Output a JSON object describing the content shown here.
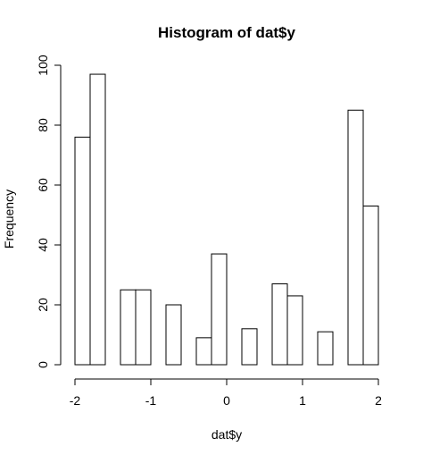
{
  "chart_data": {
    "type": "bar",
    "title": "Histogram of dat$y",
    "xlabel": "dat$y",
    "ylabel": "Frequency",
    "xlim": [
      -2,
      2
    ],
    "ylim": [
      0,
      100
    ],
    "x_ticks": [
      -2,
      -1,
      0,
      1,
      2
    ],
    "y_ticks": [
      0,
      20,
      40,
      60,
      80,
      100
    ],
    "bin_width": 0.2,
    "bins": [
      {
        "start": -2.0,
        "end": -1.8,
        "count": 76
      },
      {
        "start": -1.8,
        "end": -1.6,
        "count": 97
      },
      {
        "start": -1.6,
        "end": -1.4,
        "count": 0
      },
      {
        "start": -1.4,
        "end": -1.2,
        "count": 25
      },
      {
        "start": -1.2,
        "end": -1.0,
        "count": 25
      },
      {
        "start": -1.0,
        "end": -0.8,
        "count": 0
      },
      {
        "start": -0.8,
        "end": -0.6,
        "count": 20
      },
      {
        "start": -0.6,
        "end": -0.4,
        "count": 0
      },
      {
        "start": -0.4,
        "end": -0.2,
        "count": 9
      },
      {
        "start": -0.2,
        "end": 0.0,
        "count": 37
      },
      {
        "start": 0.0,
        "end": 0.2,
        "count": 0
      },
      {
        "start": 0.2,
        "end": 0.4,
        "count": 12
      },
      {
        "start": 0.4,
        "end": 0.6,
        "count": 0
      },
      {
        "start": 0.6,
        "end": 0.8,
        "count": 27
      },
      {
        "start": 0.8,
        "end": 1.0,
        "count": 23
      },
      {
        "start": 1.0,
        "end": 1.2,
        "count": 0
      },
      {
        "start": 1.2,
        "end": 1.4,
        "count": 11
      },
      {
        "start": 1.4,
        "end": 1.6,
        "count": 0
      },
      {
        "start": 1.6,
        "end": 1.8,
        "count": 85
      },
      {
        "start": 1.8,
        "end": 2.0,
        "count": 53
      }
    ],
    "grid": false,
    "bar_fill": "#ffffff",
    "bar_stroke": "#000000"
  }
}
